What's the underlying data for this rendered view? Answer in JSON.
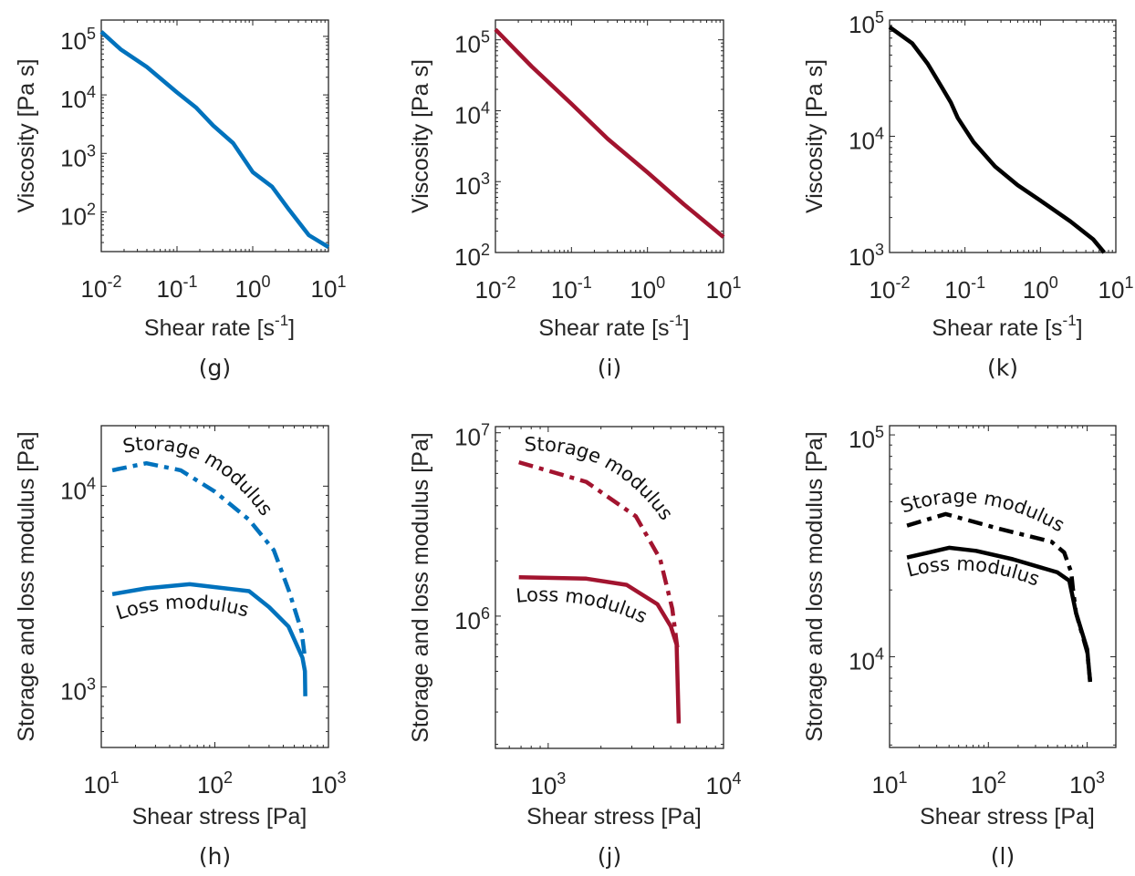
{
  "colors": {
    "blue": "#0072BD",
    "red": "#A2142F",
    "black": "#000000"
  },
  "chart_data": [
    {
      "id": "g",
      "type": "line",
      "panel_label": "(g)",
      "color": "#0072BD",
      "xscale": "log",
      "yscale": "log",
      "xlim": [
        0.01,
        10
      ],
      "ylim": [
        21,
        190000
      ],
      "grid": false,
      "xlabel": {
        "text": "Shear rate [s",
        "sup": "-1",
        "end": "]"
      },
      "ylabel": {
        "text": "Viscosity [Pa s]"
      },
      "x_ticks": [
        {
          "value": 0.01,
          "base": "10",
          "exp": "-2"
        },
        {
          "value": 0.1,
          "base": "10",
          "exp": "-1"
        },
        {
          "value": 1,
          "base": "10",
          "exp": "0"
        },
        {
          "value": 10,
          "base": "10",
          "exp": "1"
        }
      ],
      "y_ticks": [
        {
          "value": 100,
          "base": "10",
          "exp": "2"
        },
        {
          "value": 1000,
          "base": "10",
          "exp": "3"
        },
        {
          "value": 10000,
          "base": "10",
          "exp": "4"
        },
        {
          "value": 100000,
          "base": "10",
          "exp": "5"
        }
      ],
      "series": [
        {
          "style": "solid",
          "x": [
            0.01,
            0.018,
            0.04,
            0.1,
            0.18,
            0.3,
            0.55,
            1,
            1.8,
            3,
            5.5,
            10
          ],
          "y": [
            120000,
            60000,
            30000,
            11000,
            6000,
            3000,
            1500,
            480,
            270,
            110,
            40,
            25
          ]
        }
      ]
    },
    {
      "id": "i",
      "type": "line",
      "panel_label": "(i)",
      "color": "#A2142F",
      "xscale": "log",
      "yscale": "log",
      "xlim": [
        0.01,
        10
      ],
      "ylim": [
        100,
        190000
      ],
      "grid": false,
      "xlabel": {
        "text": "Shear rate [s",
        "sup": "-1",
        "end": "]"
      },
      "ylabel": {
        "text": "Viscosity [Pa s]"
      },
      "x_ticks": [
        {
          "value": 0.01,
          "base": "10",
          "exp": "-2"
        },
        {
          "value": 0.1,
          "base": "10",
          "exp": "-1"
        },
        {
          "value": 1,
          "base": "10",
          "exp": "0"
        },
        {
          "value": 10,
          "base": "10",
          "exp": "1"
        }
      ],
      "y_ticks": [
        {
          "value": 100,
          "base": "10",
          "exp": "2"
        },
        {
          "value": 1000,
          "base": "10",
          "exp": "3"
        },
        {
          "value": 10000,
          "base": "10",
          "exp": "4"
        },
        {
          "value": 100000,
          "base": "10",
          "exp": "5"
        }
      ],
      "series": [
        {
          "style": "solid",
          "x": [
            0.01,
            0.03,
            0.1,
            0.3,
            1,
            3,
            10
          ],
          "y": [
            140000,
            42000,
            12500,
            4000,
            1350,
            480,
            165
          ]
        }
      ]
    },
    {
      "id": "k",
      "type": "line",
      "panel_label": "(k)",
      "color": "#000000",
      "xscale": "log",
      "yscale": "log",
      "xlim": [
        0.01,
        10
      ],
      "ylim": [
        1000,
        100000
      ],
      "grid": false,
      "xlabel": {
        "text": "Shear rate [s",
        "sup": "-1",
        "end": "]"
      },
      "ylabel": {
        "text": "Viscosity [Pa s]"
      },
      "x_ticks": [
        {
          "value": 0.01,
          "base": "10",
          "exp": "-2"
        },
        {
          "value": 0.1,
          "base": "10",
          "exp": "-1"
        },
        {
          "value": 1,
          "base": "10",
          "exp": "0"
        },
        {
          "value": 10,
          "base": "10",
          "exp": "1"
        }
      ],
      "y_ticks": [
        {
          "value": 1000,
          "base": "10",
          "exp": "3"
        },
        {
          "value": 10000,
          "base": "10",
          "exp": "4"
        },
        {
          "value": 100000,
          "base": "10",
          "exp": "5"
        }
      ],
      "series": [
        {
          "style": "solid",
          "x": [
            0.01,
            0.02,
            0.032,
            0.05,
            0.065,
            0.08,
            0.13,
            0.25,
            0.5,
            1,
            2.5,
            5,
            7
          ],
          "y": [
            87000,
            63000,
            42000,
            26000,
            19500,
            14400,
            8900,
            5500,
            3800,
            2800,
            1850,
            1300,
            1000
          ]
        }
      ]
    },
    {
      "id": "h",
      "type": "line",
      "panel_label": "(h)",
      "color": "#0072BD",
      "xscale": "log",
      "yscale": "log",
      "xlim": [
        10,
        1000
      ],
      "ylim": [
        500,
        20000
      ],
      "grid": false,
      "xlabel": {
        "text": "Shear stress [Pa]"
      },
      "ylabel": {
        "text": "Storage and loss modulus [Pa]"
      },
      "x_ticks": [
        {
          "value": 10,
          "base": "10",
          "exp": "1"
        },
        {
          "value": 100,
          "base": "10",
          "exp": "2"
        },
        {
          "value": 1000,
          "base": "10",
          "exp": "3"
        }
      ],
      "y_ticks": [
        {
          "value": 1000,
          "base": "10",
          "exp": "3"
        },
        {
          "value": 10000,
          "base": "10",
          "exp": "4"
        }
      ],
      "series": [
        {
          "name": "Storage modulus",
          "style": "dashdot",
          "x": [
            12.5,
            25,
            50,
            100,
            200,
            330,
            450,
            580,
            620
          ],
          "y": [
            12000,
            13000,
            12000,
            9400,
            6800,
            4800,
            3000,
            1900,
            1400
          ]
        },
        {
          "name": "Loss modulus",
          "style": "solid",
          "x": [
            12.5,
            25,
            60,
            200,
            300,
            445,
            590,
            620,
            625
          ],
          "y": [
            2900,
            3100,
            3250,
            3000,
            2500,
            2000,
            1400,
            1200,
            900
          ]
        }
      ]
    },
    {
      "id": "j",
      "type": "line",
      "panel_label": "(j)",
      "color": "#A2142F",
      "xscale": "log",
      "yscale": "log",
      "xlim": [
        500,
        10000
      ],
      "ylim": [
        190000,
        10800000
      ],
      "grid": false,
      "xlabel": {
        "text": "Shear stress [Pa]"
      },
      "ylabel": {
        "text": "Storage and loss modulus [Pa]"
      },
      "x_ticks": [
        {
          "value": 1000,
          "base": "10",
          "exp": "3"
        },
        {
          "value": 10000,
          "base": "10",
          "exp": "4"
        }
      ],
      "y_ticks": [
        {
          "value": 1000000,
          "base": "10",
          "exp": "6"
        },
        {
          "value": 10000000,
          "base": "10",
          "exp": "7"
        }
      ],
      "series": [
        {
          "name": "Storage modulus",
          "style": "dashdot",
          "x": [
            680,
            1650,
            3160,
            4350,
            5100,
            5500
          ],
          "y": [
            6900000,
            5400000,
            3500000,
            2050000,
            1100000,
            630000
          ]
        },
        {
          "name": "Loss modulus",
          "style": "solid",
          "x": [
            680,
            1650,
            2800,
            4200,
            5000,
            5400,
            5550
          ],
          "y": [
            1630000,
            1600000,
            1480000,
            1160000,
            880000,
            700000,
            260000
          ]
        }
      ]
    },
    {
      "id": "l",
      "type": "line",
      "panel_label": "(l)",
      "color": "#000000",
      "xscale": "log",
      "yscale": "log",
      "xlim": [
        10,
        1950
      ],
      "ylim": [
        3900,
        110000
      ],
      "grid": false,
      "xlabel": {
        "text": "Shear stress [Pa]"
      },
      "ylabel": {
        "text": "Storage and loss modulus [Pa]"
      },
      "x_ticks": [
        {
          "value": 10,
          "base": "10",
          "exp": "1"
        },
        {
          "value": 100,
          "base": "10",
          "exp": "2"
        },
        {
          "value": 1000,
          "base": "10",
          "exp": "3"
        }
      ],
      "y_ticks": [
        {
          "value": 10000,
          "base": "10",
          "exp": "4"
        },
        {
          "value": 100000,
          "base": "10",
          "exp": "5"
        }
      ],
      "series": [
        {
          "name": "Storage modulus",
          "style": "dashdot",
          "x": [
            15,
            37,
            122,
            435,
            585,
            690,
            720,
            770,
            1000,
            1070
          ],
          "y": [
            39000,
            44000,
            38000,
            33000,
            29500,
            24000,
            20000,
            15800,
            10500,
            7800
          ]
        },
        {
          "name": "Loss modulus",
          "style": "solid",
          "x": [
            15,
            40,
            75,
            177,
            500,
            660,
            770,
            1000,
            1070
          ],
          "y": [
            28000,
            31000,
            30000,
            27500,
            24000,
            22000,
            15800,
            10800,
            7700
          ]
        }
      ]
    }
  ]
}
